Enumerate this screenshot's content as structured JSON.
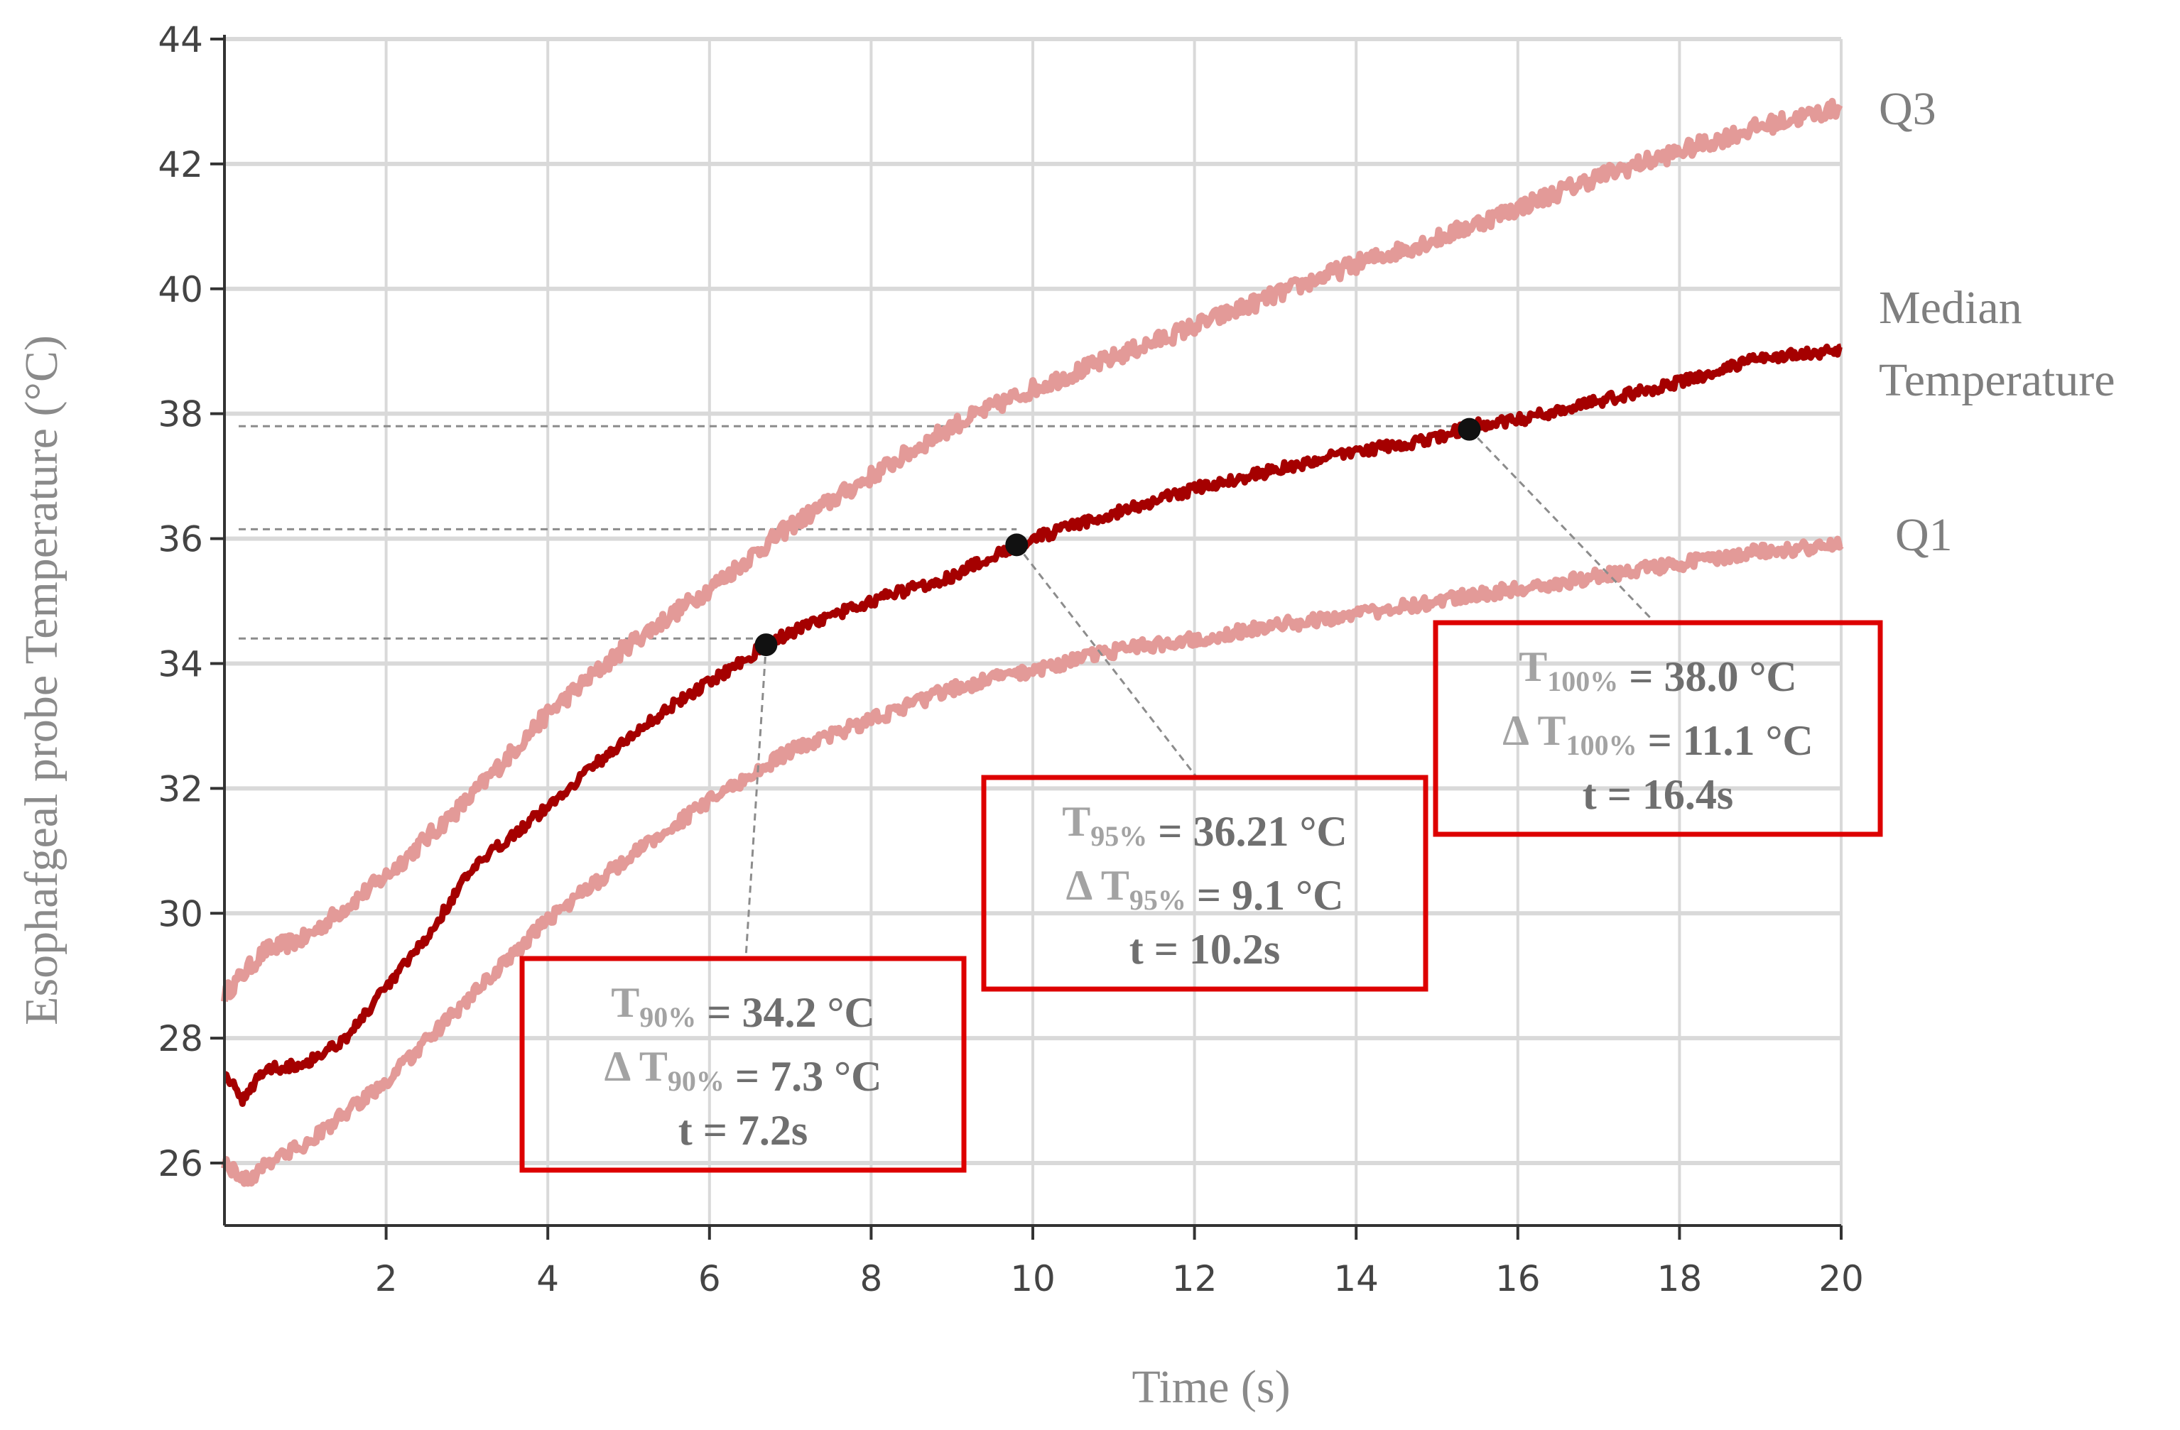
{
  "chart_data": {
    "type": "line",
    "title": "",
    "xlabel": "Time (s)",
    "ylabel": "Esophafgeal probe  Temperature (°C)",
    "xlim": [
      0,
      20
    ],
    "ylim": [
      25,
      44
    ],
    "x_ticks": [
      2,
      4,
      6,
      8,
      10,
      12,
      14,
      16,
      18,
      20
    ],
    "y_ticks": [
      26,
      28,
      30,
      32,
      34,
      36,
      38,
      40,
      42,
      44
    ],
    "grid": true,
    "series": [
      {
        "name": "Q3",
        "label": "Q3",
        "color": "#e39a98",
        "points": [
          [
            0,
            28.7
          ],
          [
            0.5,
            29.4
          ],
          [
            1,
            29.6
          ],
          [
            2,
            30.6
          ],
          [
            3,
            31.8
          ],
          [
            4,
            33.2
          ],
          [
            5,
            34.3
          ],
          [
            6,
            35.2
          ],
          [
            7,
            36.2
          ],
          [
            8,
            37.0
          ],
          [
            9,
            37.8
          ],
          [
            10,
            38.4
          ],
          [
            11,
            38.9
          ],
          [
            12,
            39.4
          ],
          [
            13,
            39.9
          ],
          [
            14,
            40.4
          ],
          [
            15,
            40.8
          ],
          [
            16,
            41.3
          ],
          [
            17,
            41.8
          ],
          [
            18,
            42.2
          ],
          [
            19,
            42.6
          ],
          [
            20,
            42.9
          ]
        ]
      },
      {
        "name": "Median Temperature",
        "label_lines": [
          "Median",
          "Temperature"
        ],
        "color": "#a50000",
        "points": [
          [
            0,
            27.5
          ],
          [
            0.2,
            27.0
          ],
          [
            0.5,
            27.5
          ],
          [
            1,
            27.6
          ],
          [
            1.5,
            28.0
          ],
          [
            2,
            28.8
          ],
          [
            2.5,
            29.6
          ],
          [
            3,
            30.6
          ],
          [
            3.5,
            31.2
          ],
          [
            4,
            31.7
          ],
          [
            4.5,
            32.3
          ],
          [
            5,
            32.8
          ],
          [
            5.5,
            33.3
          ],
          [
            6,
            33.7
          ],
          [
            6.7,
            34.3
          ],
          [
            7,
            34.5
          ],
          [
            8,
            35.0
          ],
          [
            9,
            35.4
          ],
          [
            9.8,
            35.9
          ],
          [
            10,
            36.0
          ],
          [
            11,
            36.4
          ],
          [
            12,
            36.8
          ],
          [
            13,
            37.1
          ],
          [
            14,
            37.4
          ],
          [
            15,
            37.6
          ],
          [
            15.4,
            37.8
          ],
          [
            16,
            37.9
          ],
          [
            17,
            38.2
          ],
          [
            18,
            38.5
          ],
          [
            19,
            38.9
          ],
          [
            20,
            39.0
          ]
        ]
      },
      {
        "name": "Q1",
        "label": "Q1",
        "color": "#e39a98",
        "points": [
          [
            0,
            26.0
          ],
          [
            0.3,
            25.7
          ],
          [
            0.5,
            26.0
          ],
          [
            1,
            26.3
          ],
          [
            2,
            27.3
          ],
          [
            3,
            28.6
          ],
          [
            4,
            29.9
          ],
          [
            5,
            30.9
          ],
          [
            6,
            31.8
          ],
          [
            7,
            32.6
          ],
          [
            8,
            33.1
          ],
          [
            9,
            33.6
          ],
          [
            10,
            33.9
          ],
          [
            11,
            34.2
          ],
          [
            12,
            34.4
          ],
          [
            13,
            34.6
          ],
          [
            14,
            34.8
          ],
          [
            15,
            35.0
          ],
          [
            16,
            35.2
          ],
          [
            17,
            35.4
          ],
          [
            18,
            35.6
          ],
          [
            19,
            35.8
          ],
          [
            20,
            35.9
          ]
        ]
      }
    ],
    "markers": [
      {
        "x": 6.7,
        "y": 34.3
      },
      {
        "x": 9.8,
        "y": 35.9
      },
      {
        "x": 15.4,
        "y": 37.75
      }
    ],
    "reference_lines": [
      {
        "y": 34.4,
        "x_end": 6.7
      },
      {
        "y": 36.15,
        "x_end": 9.8
      },
      {
        "y": 37.8,
        "x_end": 15.4
      }
    ],
    "annotations": [
      {
        "name": "t90",
        "lines": [
          [
            {
              "t": "T",
              "c": "sym"
            },
            {
              "t": "90%",
              "c": "sub"
            },
            {
              "t": " = 34.2 °C"
            }
          ],
          [
            {
              "t": "Δ T",
              "c": "sym"
            },
            {
              "t": "90%",
              "c": "sub"
            },
            {
              "t": " = 7.3 °C"
            }
          ],
          [
            {
              "t": "t = 7.2s"
            }
          ]
        ]
      },
      {
        "name": "t95",
        "lines": [
          [
            {
              "t": "T",
              "c": "sym"
            },
            {
              "t": "95%",
              "c": "sub"
            },
            {
              "t": " = 36.21 °C"
            }
          ],
          [
            {
              "t": "Δ T",
              "c": "sym"
            },
            {
              "t": "95%",
              "c": "sub"
            },
            {
              "t": " = 9.1 °C"
            }
          ],
          [
            {
              "t": "t = 10.2s"
            }
          ]
        ]
      },
      {
        "name": "t100",
        "lines": [
          [
            {
              "t": "T",
              "c": "sym"
            },
            {
              "t": "100%",
              "c": "sub"
            },
            {
              "t": " = 38.0 °C"
            }
          ],
          [
            {
              "t": "Δ T",
              "c": "sym"
            },
            {
              "t": "100%",
              "c": "sub"
            },
            {
              "t": " = 11.1 °C"
            }
          ],
          [
            {
              "t": "t = 16.4s"
            }
          ]
        ]
      }
    ],
    "colors": {
      "grid": "#d9d9d9",
      "axis": "#333333",
      "box_border": "#dd0000",
      "marker": "#111111",
      "dash": "#8c8c8c"
    }
  }
}
